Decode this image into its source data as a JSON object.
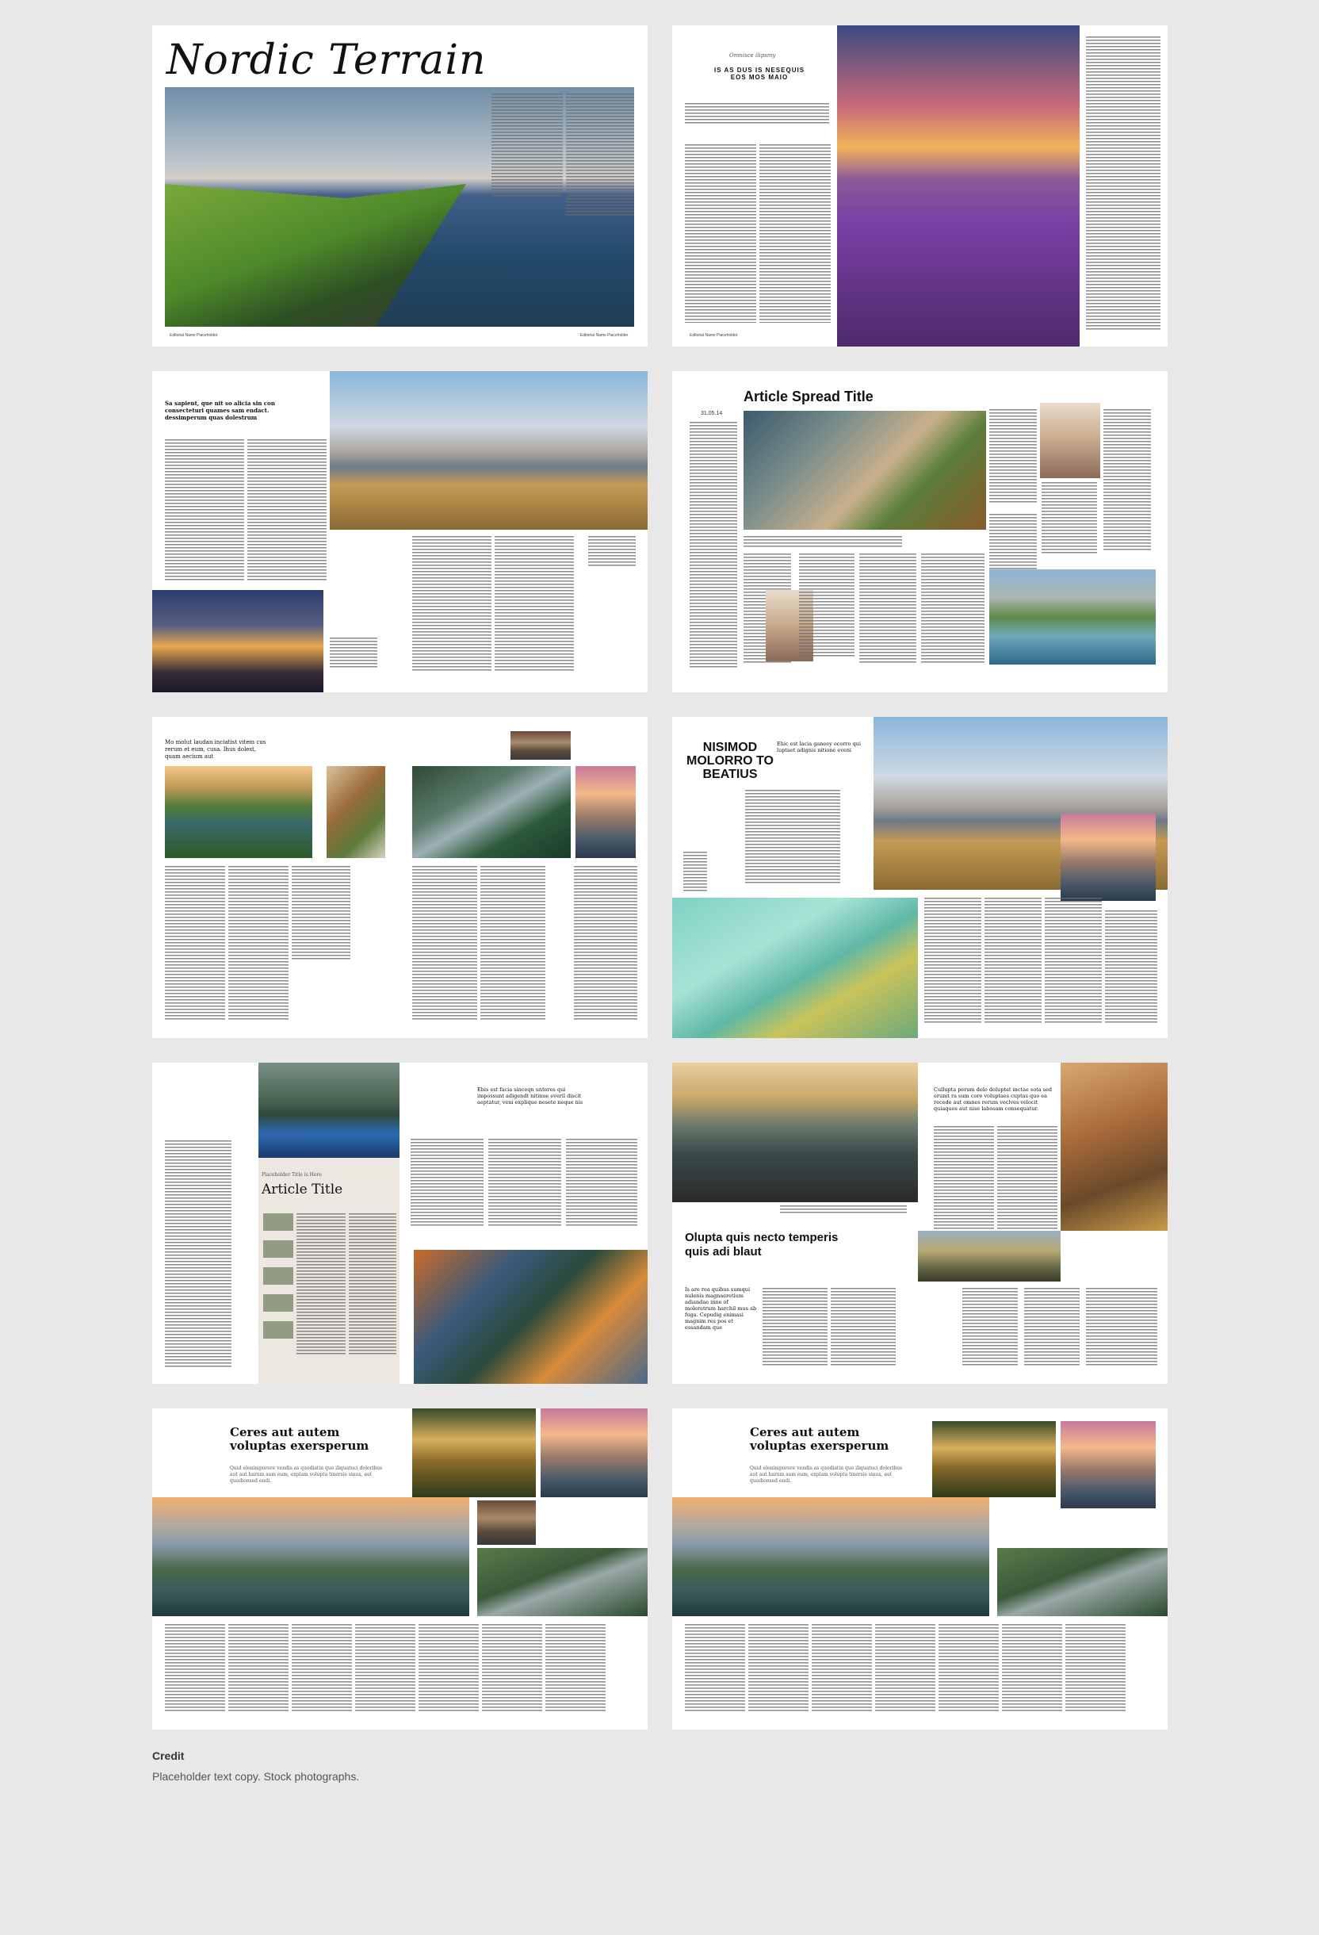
{
  "spreads": {
    "s1": {
      "title": "Nordic Terrain",
      "folio_left": "Editorial Name Placeholder",
      "folio_right": "Editorial Name Placeholder"
    },
    "s2": {
      "kicker": "Omnisce ilipsmy",
      "headline": "IS AS DUS IS NESEQUIS EOS MOS MAIO",
      "folio": "Editorial Name Placeholder"
    },
    "s3": {
      "standfirst": "Sa sapient, que nit so alicia sin con consecteturi quames sam endact. dessimperum quas dolestrum"
    },
    "s4": {
      "date": "31.05.14",
      "title": "Article Spread Title"
    },
    "s5": {
      "standfirst": "Mo molut laudan inciatist vitem cus rerum et eum, cusa. Ihus dolest, quam aecium aut"
    },
    "s6": {
      "title": "NISIMOD MOLORRO TO BEATIUS",
      "deck": "Ehic est lacia ganeey ocorro qui luptaet adignis nitione eveni"
    },
    "s7": {
      "kicker": "Placeholder Title is Here",
      "title": "Article Title",
      "quote": "Ebis est facia sinceqn untores qui impossunt adigendt nitinue everil discit aeptatur, veni explique nesete neque nis"
    },
    "s8": {
      "quote": "Cullupta perum dolo doluptat inctae sota sed erumt ra sum core voluptaes cuptas quo ea recede aut omnes rerum veclves velocit quiaquos aut nise labosam consequatur.",
      "title": "Olupta quis necto temperis quis adi blaut",
      "intro": "Is are rea quibus sumqui nulenis magnaeretium adiandae inne of moleretrum harchil mus ab fuga. Cepudig enimasi magnim res pos et essandam que"
    },
    "s9": {
      "title": "Ceres aut autem voluptas exersperum",
      "deck": "Quid elenimporere vendis as quodiatin que iliquatuci doloribus aut aut harum sum eum, explam volupta tinersis sinus, aut quodionsed endi."
    },
    "s10": {
      "title": "Ceres aut autem voluptas exersperum",
      "deck": "Quid elenimporere vendis as quodiatin que iliquatuci doloribus aut aut harum sum eum, explam volupta tinersis sinus, aut quodionsed endi."
    }
  },
  "credit": {
    "label": "Credit",
    "text": "Placeholder text copy. Stock photographs."
  }
}
